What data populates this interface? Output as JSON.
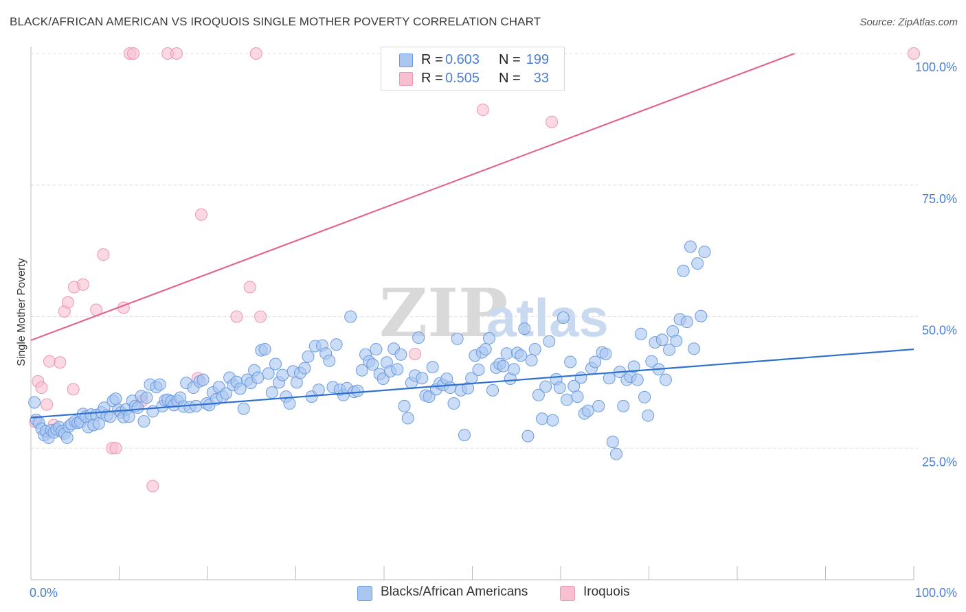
{
  "header": {
    "title": "BLACK/AFRICAN AMERICAN VS IROQUOIS SINGLE MOTHER POVERTY CORRELATION CHART",
    "source": "Source: ZipAtlas.com"
  },
  "watermark": {
    "zip": "ZIP",
    "atlas": "atlas"
  },
  "legend": {
    "rows": [
      {
        "r_label": "R =",
        "r_value": "0.603",
        "n_label": "N =",
        "n_value": "199"
      },
      {
        "r_label": "R =",
        "r_value": "0.505",
        "n_label": "N =",
        "n_value": "33"
      }
    ]
  },
  "bottom_legend": {
    "blue": "Blacks/African Americans",
    "pink": "Iroquois"
  },
  "colors": {
    "blue_fill": "#a9c7f0",
    "blue_stroke": "#6b9ae0",
    "blue_line": "#2e6fd0",
    "pink_fill": "#f7bfd0",
    "pink_stroke": "#ee95b0",
    "pink_line": "#e0678f",
    "grid": "#dddddd",
    "axis_text": "#4a7fd1"
  },
  "chart_data": {
    "type": "scatter",
    "title": "BLACK/AFRICAN AMERICAN VS IROQUOIS SINGLE MOTHER POVERTY CORRELATION CHART",
    "ylabel": "Single Mother Poverty",
    "xlabel": "",
    "xlim": [
      0,
      100
    ],
    "ylim": [
      0,
      100
    ],
    "x_tick_labels": [
      "0.0%",
      "100.0%"
    ],
    "y_ticks": [
      25,
      50,
      75,
      100
    ],
    "y_tick_labels": [
      "25.0%",
      "50.0%",
      "75.0%",
      "100.0%"
    ],
    "grid": true,
    "series": [
      {
        "name": "Blacks/African Americans",
        "r": 0.603,
        "n": 199,
        "trend": {
          "x": [
            0,
            100
          ],
          "y": [
            30.8,
            43.8
          ]
        },
        "points": [
          [
            0.4,
            33.7
          ],
          [
            0.6,
            30.4
          ],
          [
            0.9,
            29.8
          ],
          [
            1.2,
            28.7
          ],
          [
            1.5,
            27.5
          ],
          [
            1.7,
            28.2
          ],
          [
            2.0,
            27.0
          ],
          [
            2.3,
            28.4
          ],
          [
            2.6,
            28.0
          ],
          [
            2.9,
            28.6
          ],
          [
            3.2,
            29.0
          ],
          [
            3.5,
            28.2
          ],
          [
            3.8,
            27.8
          ],
          [
            4.1,
            27.0
          ],
          [
            4.3,
            29.1
          ],
          [
            4.6,
            29.6
          ],
          [
            5.0,
            30.1
          ],
          [
            5.3,
            29.8
          ],
          [
            5.6,
            30.0
          ],
          [
            5.9,
            31.5
          ],
          [
            6.2,
            31.0
          ],
          [
            6.5,
            29.0
          ],
          [
            6.8,
            31.4
          ],
          [
            7.1,
            29.4
          ],
          [
            7.4,
            31.3
          ],
          [
            7.7,
            29.7
          ],
          [
            8.0,
            31.8
          ],
          [
            8.3,
            32.7
          ],
          [
            8.6,
            31.2
          ],
          [
            9.0,
            31.0
          ],
          [
            9.3,
            34.0
          ],
          [
            9.6,
            34.4
          ],
          [
            9.9,
            32.3
          ],
          [
            10.2,
            31.8
          ],
          [
            10.5,
            30.9
          ],
          [
            10.8,
            32.4
          ],
          [
            11.1,
            31.0
          ],
          [
            11.5,
            34.0
          ],
          [
            11.8,
            33.0
          ],
          [
            12.1,
            32.7
          ],
          [
            12.5,
            34.9
          ],
          [
            12.8,
            30.1
          ],
          [
            13.1,
            34.6
          ],
          [
            13.5,
            37.1
          ],
          [
            13.8,
            32.0
          ],
          [
            14.2,
            36.6
          ],
          [
            14.6,
            37.1
          ],
          [
            14.9,
            33.0
          ],
          [
            15.2,
            34.1
          ],
          [
            15.5,
            34.2
          ],
          [
            15.9,
            33.9
          ],
          [
            16.2,
            33.2
          ],
          [
            16.6,
            34.0
          ],
          [
            16.9,
            34.6
          ],
          [
            17.3,
            32.9
          ],
          [
            17.6,
            37.4
          ],
          [
            18.0,
            32.8
          ],
          [
            18.4,
            36.5
          ],
          [
            18.7,
            33.0
          ],
          [
            19.1,
            37.7
          ],
          [
            19.5,
            38.0
          ],
          [
            19.9,
            33.5
          ],
          [
            20.2,
            33.2
          ],
          [
            20.6,
            35.6
          ],
          [
            21.0,
            34.3
          ],
          [
            21.3,
            36.6
          ],
          [
            21.7,
            34.8
          ],
          [
            22.1,
            35.4
          ],
          [
            22.5,
            38.4
          ],
          [
            22.9,
            37.0
          ],
          [
            23.3,
            37.6
          ],
          [
            23.7,
            36.3
          ],
          [
            24.1,
            32.5
          ],
          [
            24.5,
            38.0
          ],
          [
            24.9,
            37.4
          ],
          [
            25.3,
            39.8
          ],
          [
            25.7,
            38.4
          ],
          [
            26.1,
            43.6
          ],
          [
            26.5,
            43.8
          ],
          [
            26.9,
            39.2
          ],
          [
            27.3,
            35.6
          ],
          [
            27.7,
            41.0
          ],
          [
            28.1,
            37.5
          ],
          [
            28.5,
            38.9
          ],
          [
            28.9,
            34.8
          ],
          [
            29.3,
            33.5
          ],
          [
            29.7,
            39.6
          ],
          [
            30.1,
            37.5
          ],
          [
            30.5,
            39.3
          ],
          [
            31.0,
            40.2
          ],
          [
            31.4,
            42.4
          ],
          [
            31.8,
            34.8
          ],
          [
            32.2,
            44.4
          ],
          [
            32.6,
            36.1
          ],
          [
            33.0,
            44.5
          ],
          [
            33.4,
            43.0
          ],
          [
            33.8,
            41.6
          ],
          [
            34.2,
            36.6
          ],
          [
            34.6,
            44.7
          ],
          [
            35.0,
            36.1
          ],
          [
            35.4,
            35.1
          ],
          [
            35.8,
            36.4
          ],
          [
            36.2,
            50.0
          ],
          [
            36.6,
            35.7
          ],
          [
            37.0,
            35.9
          ],
          [
            37.5,
            39.8
          ],
          [
            37.9,
            42.8
          ],
          [
            38.3,
            41.5
          ],
          [
            38.7,
            40.9
          ],
          [
            39.1,
            43.8
          ],
          [
            39.5,
            39.1
          ],
          [
            39.9,
            38.2
          ],
          [
            40.3,
            41.3
          ],
          [
            40.7,
            39.6
          ],
          [
            41.1,
            43.9
          ],
          [
            41.5,
            40.0
          ],
          [
            41.9,
            42.8
          ],
          [
            42.3,
            33.0
          ],
          [
            42.7,
            30.7
          ],
          [
            43.1,
            37.4
          ],
          [
            43.5,
            38.8
          ],
          [
            43.9,
            46.0
          ],
          [
            44.3,
            38.3
          ],
          [
            44.7,
            35.0
          ],
          [
            45.1,
            34.8
          ],
          [
            45.5,
            40.4
          ],
          [
            45.9,
            36.2
          ],
          [
            46.3,
            37.3
          ],
          [
            46.7,
            37.0
          ],
          [
            47.1,
            38.2
          ],
          [
            47.5,
            36.5
          ],
          [
            47.9,
            33.5
          ],
          [
            48.3,
            45.8
          ],
          [
            48.7,
            36.0
          ],
          [
            49.1,
            27.5
          ],
          [
            49.5,
            36.4
          ],
          [
            49.9,
            38.3
          ],
          [
            50.3,
            42.6
          ],
          [
            50.7,
            39.9
          ],
          [
            51.1,
            43.2
          ],
          [
            51.5,
            43.8
          ],
          [
            51.9,
            45.9
          ],
          [
            52.3,
            36.0
          ],
          [
            52.7,
            40.3
          ],
          [
            53.1,
            41.0
          ],
          [
            53.5,
            40.6
          ],
          [
            53.9,
            43.0
          ],
          [
            54.3,
            38.2
          ],
          [
            54.7,
            40.0
          ],
          [
            55.1,
            43.1
          ],
          [
            55.5,
            42.6
          ],
          [
            55.9,
            47.7
          ],
          [
            56.3,
            27.3
          ],
          [
            56.7,
            41.7
          ],
          [
            57.1,
            43.8
          ],
          [
            57.5,
            35.1
          ],
          [
            57.9,
            30.6
          ],
          [
            58.3,
            36.7
          ],
          [
            58.7,
            45.3
          ],
          [
            59.1,
            30.3
          ],
          [
            59.5,
            38.1
          ],
          [
            59.9,
            36.5
          ],
          [
            60.3,
            49.8
          ],
          [
            60.7,
            34.2
          ],
          [
            61.1,
            41.4
          ],
          [
            61.5,
            36.8
          ],
          [
            61.9,
            34.8
          ],
          [
            62.3,
            38.4
          ],
          [
            62.7,
            31.6
          ],
          [
            63.1,
            32.1
          ],
          [
            63.5,
            40.2
          ],
          [
            63.9,
            41.4
          ],
          [
            64.3,
            33.0
          ],
          [
            64.7,
            43.2
          ],
          [
            65.1,
            42.9
          ],
          [
            65.5,
            38.3
          ],
          [
            65.9,
            26.2
          ],
          [
            66.3,
            23.9
          ],
          [
            66.7,
            39.5
          ],
          [
            67.1,
            33.0
          ],
          [
            67.5,
            38.0
          ],
          [
            67.9,
            38.6
          ],
          [
            68.3,
            40.5
          ],
          [
            68.7,
            38.0
          ],
          [
            69.1,
            46.7
          ],
          [
            69.5,
            34.7
          ],
          [
            69.9,
            31.2
          ],
          [
            70.3,
            41.5
          ],
          [
            70.7,
            45.1
          ],
          [
            71.1,
            40.0
          ],
          [
            71.5,
            45.6
          ],
          [
            71.9,
            38.0
          ],
          [
            72.3,
            43.7
          ],
          [
            72.7,
            47.2
          ],
          [
            73.1,
            45.4
          ],
          [
            73.5,
            49.5
          ],
          [
            73.9,
            58.7
          ],
          [
            74.3,
            49.0
          ],
          [
            74.7,
            63.3
          ],
          [
            75.1,
            43.9
          ],
          [
            75.5,
            60.1
          ],
          [
            75.9,
            50.1
          ],
          [
            76.3,
            62.3
          ]
        ]
      },
      {
        "name": "Iroquois",
        "r": 0.505,
        "n": 33,
        "trend": {
          "x": [
            0,
            86.5
          ],
          "y": [
            45.5,
            100
          ]
        },
        "points": [
          [
            0.5,
            30.0
          ],
          [
            0.8,
            37.7
          ],
          [
            1.2,
            36.5
          ],
          [
            1.8,
            33.3
          ],
          [
            2.1,
            41.5
          ],
          [
            2.6,
            29.4
          ],
          [
            3.3,
            41.3
          ],
          [
            3.8,
            51.0
          ],
          [
            4.2,
            52.7
          ],
          [
            4.8,
            36.2
          ],
          [
            4.9,
            55.6
          ],
          [
            5.9,
            56.1
          ],
          [
            7.4,
            51.3
          ],
          [
            8.2,
            61.8
          ],
          [
            9.2,
            25.0
          ],
          [
            9.6,
            25.0
          ],
          [
            10.5,
            51.7
          ],
          [
            11.2,
            100.0
          ],
          [
            11.6,
            100.0
          ],
          [
            12.6,
            34.0
          ],
          [
            13.8,
            17.8
          ],
          [
            15.5,
            100.0
          ],
          [
            16.5,
            100.0
          ],
          [
            18.9,
            38.3
          ],
          [
            19.3,
            69.4
          ],
          [
            23.3,
            50.0
          ],
          [
            24.8,
            55.6
          ],
          [
            25.5,
            100.0
          ],
          [
            26.0,
            50.0
          ],
          [
            43.5,
            42.9
          ],
          [
            51.2,
            89.3
          ],
          [
            59.0,
            87.0
          ],
          [
            100.0,
            100.0
          ]
        ]
      }
    ]
  }
}
